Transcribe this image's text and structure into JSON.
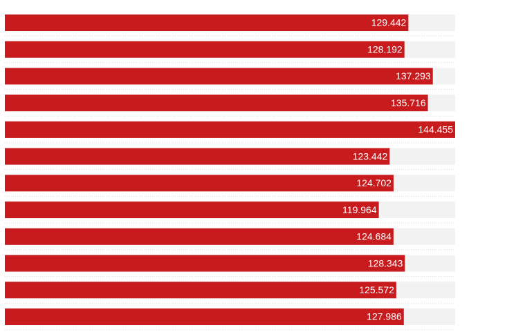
{
  "chart_data": {
    "type": "hbar",
    "values": [
      129.442,
      128.192,
      137.293,
      135.716,
      144.455,
      123.442,
      124.702,
      119.964,
      124.684,
      128.343,
      125.572,
      127.986
    ],
    "color": "#c81b1e",
    "track_color": "#f2f2f2",
    "xlim": [
      0,
      144.455
    ]
  }
}
